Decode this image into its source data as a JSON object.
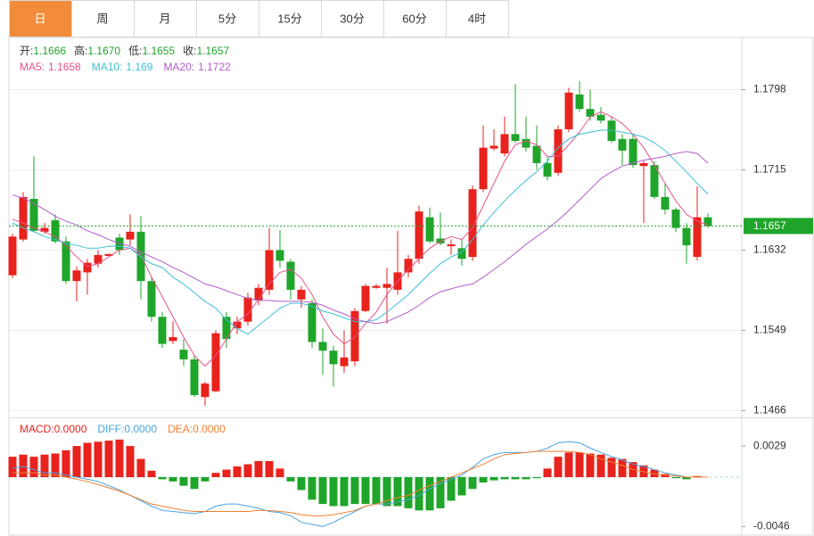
{
  "tabs": [
    "日",
    "周",
    "月",
    "5分",
    "15分",
    "30分",
    "60分",
    "4时"
  ],
  "active_tab": 0,
  "chart_data": [
    {
      "type": "candlestick",
      "up_color": "#e8221c",
      "down_color": "#1fa52a",
      "ylim": [
        1.1459,
        1.1852
      ],
      "yticks": [
        1.1798,
        1.1715,
        1.1632,
        1.1549,
        1.1466
      ],
      "grid": true,
      "ohlc_legend": [
        {
          "label": "开:",
          "value": "1.1666"
        },
        {
          "label": "高:",
          "value": "1.1670"
        },
        {
          "label": "低:",
          "value": "1.1655"
        },
        {
          "label": "收:",
          "value": "1.1657"
        }
      ],
      "open": [
        1.1606,
        1.1643,
        1.1685,
        1.1651,
        1.1663,
        1.1641,
        1.16,
        1.1609,
        1.1618,
        1.1626,
        1.1645,
        1.1643,
        1.1651,
        1.16,
        1.1563,
        1.1538,
        1.1529,
        1.1519,
        1.148,
        1.1486,
        1.1563,
        1.1551,
        1.1558,
        1.158,
        1.1591,
        1.1632,
        1.162,
        1.1581,
        1.1577,
        1.1537,
        1.1528,
        1.1512,
        1.1517,
        1.1569,
        1.1593,
        1.1593,
        1.1591,
        1.1609,
        1.1623,
        1.1666,
        1.1644,
        1.1636,
        1.1634,
        1.1625,
        1.1695,
        1.1737,
        1.1732,
        1.1752,
        1.1747,
        1.174,
        1.1722,
        1.1712,
        1.1757,
        1.1793,
        1.1778,
        1.1772,
        1.1766,
        1.1747,
        1.1747,
        1.1719,
        1.172,
        1.1687,
        1.1674,
        1.1655,
        1.1625,
        1.1666
      ],
      "high": [
        1.1649,
        1.1692,
        1.1729,
        1.166,
        1.1669,
        1.1646,
        1.1615,
        1.1623,
        1.1632,
        1.1628,
        1.1649,
        1.1669,
        1.1667,
        1.1604,
        1.1568,
        1.1558,
        1.154,
        1.1523,
        1.1496,
        1.1549,
        1.1568,
        1.1563,
        1.1588,
        1.1597,
        1.1655,
        1.1653,
        1.1623,
        1.1595,
        1.1581,
        1.1551,
        1.1533,
        1.1549,
        1.1572,
        1.1597,
        1.1597,
        1.1614,
        1.1652,
        1.1627,
        1.1678,
        1.1676,
        1.1671,
        1.1643,
        1.1643,
        1.1699,
        1.1761,
        1.1757,
        1.177,
        1.1804,
        1.177,
        1.1761,
        1.1729,
        1.1761,
        1.18,
        1.1807,
        1.1798,
        1.178,
        1.177,
        1.1752,
        1.1752,
        1.1724,
        1.1724,
        1.1701,
        1.1676,
        1.166,
        1.1698,
        1.167
      ],
      "low": [
        1.1603,
        1.1641,
        1.1651,
        1.1649,
        1.1639,
        1.1597,
        1.1579,
        1.1586,
        1.1614,
        1.1626,
        1.1627,
        1.1637,
        1.1581,
        1.1558,
        1.1531,
        1.1535,
        1.1512,
        1.148,
        1.1471,
        1.1485,
        1.1531,
        1.1545,
        1.1554,
        1.1575,
        1.1586,
        1.1614,
        1.1581,
        1.1572,
        1.1531,
        1.1503,
        1.1491,
        1.1505,
        1.1512,
        1.1568,
        1.1592,
        1.1556,
        1.1586,
        1.1604,
        1.1618,
        1.1639,
        1.1637,
        1.1627,
        1.1616,
        1.1621,
        1.1692,
        1.1735,
        1.1729,
        1.1743,
        1.1734,
        1.1715,
        1.1704,
        1.1709,
        1.1754,
        1.1775,
        1.1766,
        1.1763,
        1.1743,
        1.172,
        1.1717,
        1.166,
        1.1685,
        1.1669,
        1.1651,
        1.1618,
        1.1621,
        1.1655
      ],
      "close": [
        1.1646,
        1.1687,
        1.1652,
        1.1655,
        1.1641,
        1.16,
        1.1611,
        1.1619,
        1.1627,
        1.1628,
        1.1632,
        1.1651,
        1.16,
        1.1563,
        1.1535,
        1.1542,
        1.1519,
        1.1482,
        1.1494,
        1.1546,
        1.154,
        1.1558,
        1.1583,
        1.1593,
        1.1632,
        1.1621,
        1.1591,
        1.1591,
        1.1537,
        1.1528,
        1.1514,
        1.1521,
        1.1569,
        1.1595,
        1.1595,
        1.1597,
        1.1609,
        1.1623,
        1.1672,
        1.1641,
        1.1639,
        1.1638,
        1.1623,
        1.1695,
        1.1738,
        1.174,
        1.1752,
        1.1745,
        1.1738,
        1.1722,
        1.1708,
        1.1757,
        1.1795,
        1.1778,
        1.177,
        1.1766,
        1.1745,
        1.1735,
        1.172,
        1.1722,
        1.1687,
        1.1674,
        1.1655,
        1.1637,
        1.1666,
        1.1657
      ],
      "ma": [
        {
          "name": "MA5:",
          "color": "#e8518b",
          "values": [
            1.1664,
            1.166,
            1.1655,
            1.1651,
            1.1646,
            1.1637,
            1.1625,
            1.1615,
            1.1618,
            1.1625,
            1.1632,
            1.1634,
            1.1627,
            1.1604,
            1.1584,
            1.1563,
            1.1542,
            1.1523,
            1.1512,
            1.1523,
            1.154,
            1.1558,
            1.1566,
            1.1581,
            1.1597,
            1.1609,
            1.1612,
            1.1603,
            1.1586,
            1.1563,
            1.1545,
            1.1535,
            1.1542,
            1.1556,
            1.1568,
            1.1586,
            1.16,
            1.1612,
            1.1623,
            1.1634,
            1.1641,
            1.1646,
            1.1643,
            1.1655,
            1.1678,
            1.1701,
            1.1724,
            1.1741,
            1.1745,
            1.1741,
            1.1729,
            1.1729,
            1.1741,
            1.1754,
            1.177,
            1.1775,
            1.177,
            1.1763,
            1.1752,
            1.1738,
            1.172,
            1.1701,
            1.1683,
            1.1669,
            1.1662,
            1.1658
          ]
        },
        {
          "name": "MA10:",
          "color": "#3cbfd6",
          "values": [
            1.166,
            1.1655,
            1.1651,
            1.1646,
            1.1643,
            1.1639,
            1.1637,
            1.1634,
            1.1634,
            1.1636,
            1.1636,
            1.1634,
            1.1625,
            1.1618,
            1.1614,
            1.1604,
            1.1597,
            1.1588,
            1.1579,
            1.1572,
            1.156,
            1.1551,
            1.1545,
            1.1554,
            1.1563,
            1.1572,
            1.1577,
            1.1577,
            1.1574,
            1.1569,
            1.1566,
            1.1562,
            1.1558,
            1.1558,
            1.156,
            1.1568,
            1.1577,
            1.1586,
            1.1597,
            1.1608,
            1.1618,
            1.1625,
            1.163,
            1.1643,
            1.1658,
            1.1671,
            1.1683,
            1.1694,
            1.1704,
            1.1713,
            1.1724,
            1.1738,
            1.1747,
            1.1752,
            1.1754,
            1.1756,
            1.1756,
            1.1754,
            1.1752,
            1.1749,
            1.1743,
            1.1735,
            1.1724,
            1.1713,
            1.1701,
            1.169
          ]
        },
        {
          "name": "MA20:",
          "color": "#b25ccc",
          "values": [
            1.1689,
            1.1686,
            1.168,
            1.1674,
            1.1667,
            1.1662,
            1.1658,
            1.1652,
            1.1648,
            1.1643,
            1.1639,
            1.1636,
            1.163,
            1.1625,
            1.162,
            1.1614,
            1.1609,
            1.1603,
            1.1597,
            1.1594,
            1.159,
            1.1586,
            1.1582,
            1.158,
            1.158,
            1.1579,
            1.1579,
            1.1579,
            1.1578,
            1.1575,
            1.157,
            1.1566,
            1.1561,
            1.1558,
            1.1556,
            1.1558,
            1.1563,
            1.1568,
            1.1575,
            1.1583,
            1.1589,
            1.1592,
            1.1595,
            1.1597,
            1.1604,
            1.1612,
            1.162,
            1.1629,
            1.1638,
            1.1646,
            1.1654,
            1.1663,
            1.1673,
            1.1684,
            1.1695,
            1.1706,
            1.1713,
            1.1719,
            1.1722,
            1.1725,
            1.1727,
            1.1729,
            1.1732,
            1.1734,
            1.1732,
            1.1722
          ]
        }
      ]
    },
    {
      "type": "macd",
      "ylim": [
        -0.0054,
        0.0054
      ],
      "yticks": [
        0.0029,
        -0.0046
      ],
      "series": [
        {
          "name": "MACD:",
          "current_label": "0.0000",
          "kind": "bar",
          "color": "#e8221c",
          "negative_color": "#1fa52a",
          "values": [
            0.0019,
            0.0021,
            0.0019,
            0.0021,
            0.0022,
            0.0025,
            0.0029,
            0.0032,
            0.0033,
            0.0034,
            0.0035,
            0.0029,
            0.0017,
            0.0006,
            -0.0002,
            -0.0004,
            -0.0008,
            -0.0011,
            -0.0004,
            0.0004,
            0.0007,
            0.001,
            0.0012,
            0.0015,
            0.0015,
            0.0008,
            -0.0004,
            -0.0012,
            -0.0021,
            -0.0025,
            -0.0027,
            -0.0027,
            -0.0025,
            -0.0025,
            -0.0025,
            -0.0027,
            -0.0027,
            -0.0029,
            -0.0031,
            -0.0031,
            -0.0029,
            -0.0022,
            -0.0017,
            -0.0011,
            -0.0005,
            -0.0003,
            -0.0002,
            -0.0002,
            -0.0002,
            -0.0001,
            0.0008,
            0.0019,
            0.0023,
            0.0023,
            0.0022,
            0.0021,
            0.0018,
            0.0017,
            0.0014,
            0.0011,
            0.0007,
            0.0003,
            -0.0001,
            -0.0002,
            0.0001,
            0
          ]
        },
        {
          "name": "DIFF:",
          "current_label": "0.0000",
          "kind": "line",
          "color": "#4aa3df",
          "values": [
            0.0008,
            0.001,
            0.0007,
            0.0004,
            0.0004,
            0.0002,
            0,
            -0.0002,
            -0.0004,
            -0.0008,
            -0.0012,
            -0.0017,
            -0.0022,
            -0.0027,
            -0.0031,
            -0.0032,
            -0.0033,
            -0.0034,
            -0.0032,
            -0.0027,
            -0.0025,
            -0.0025,
            -0.0027,
            -0.0029,
            -0.0032,
            -0.0033,
            -0.0036,
            -0.0042,
            -0.0044,
            -0.0046,
            -0.0042,
            -0.0037,
            -0.0032,
            -0.0027,
            -0.0025,
            -0.0025,
            -0.0023,
            -0.0021,
            -0.0017,
            -0.0011,
            -0.0006,
            -0.0002,
            0.0002,
            0.0009,
            0.0017,
            0.0021,
            0.0023,
            0.0023,
            0.0023,
            0.0024,
            0.0027,
            0.0032,
            0.0033,
            0.0032,
            0.0027,
            0.0023,
            0.0019,
            0.0016,
            0.0012,
            0.001,
            0.0007,
            0.0004,
            0.0002,
            0,
            0,
            0
          ]
        },
        {
          "name": "DEA:",
          "current_label": "0.0000",
          "kind": "line",
          "color": "#f08030",
          "values": [
            0.0004,
            0.0004,
            0.0004,
            0.0002,
            0.0002,
            0,
            -0.0002,
            -0.0004,
            -0.0007,
            -0.001,
            -0.0013,
            -0.0017,
            -0.0021,
            -0.0025,
            -0.0027,
            -0.0029,
            -0.0031,
            -0.0032,
            -0.0032,
            -0.0032,
            -0.0032,
            -0.0032,
            -0.0032,
            -0.0031,
            -0.0031,
            -0.0032,
            -0.0033,
            -0.0035,
            -0.0036,
            -0.0036,
            -0.0035,
            -0.0033,
            -0.0031,
            -0.0027,
            -0.0025,
            -0.0022,
            -0.0019,
            -0.0017,
            -0.0012,
            -0.0008,
            -0.0004,
            0,
            0.0004,
            0.0008,
            0.0012,
            0.0017,
            0.0021,
            0.0022,
            0.0023,
            0.0024,
            0.0024,
            0.0024,
            0.0024,
            0.0023,
            0.0021,
            0.0017,
            0.0014,
            0.0011,
            0.0007,
            0.0005,
            0.0003,
            0.0002,
            0.0001,
            0,
            0,
            0
          ]
        }
      ]
    }
  ]
}
